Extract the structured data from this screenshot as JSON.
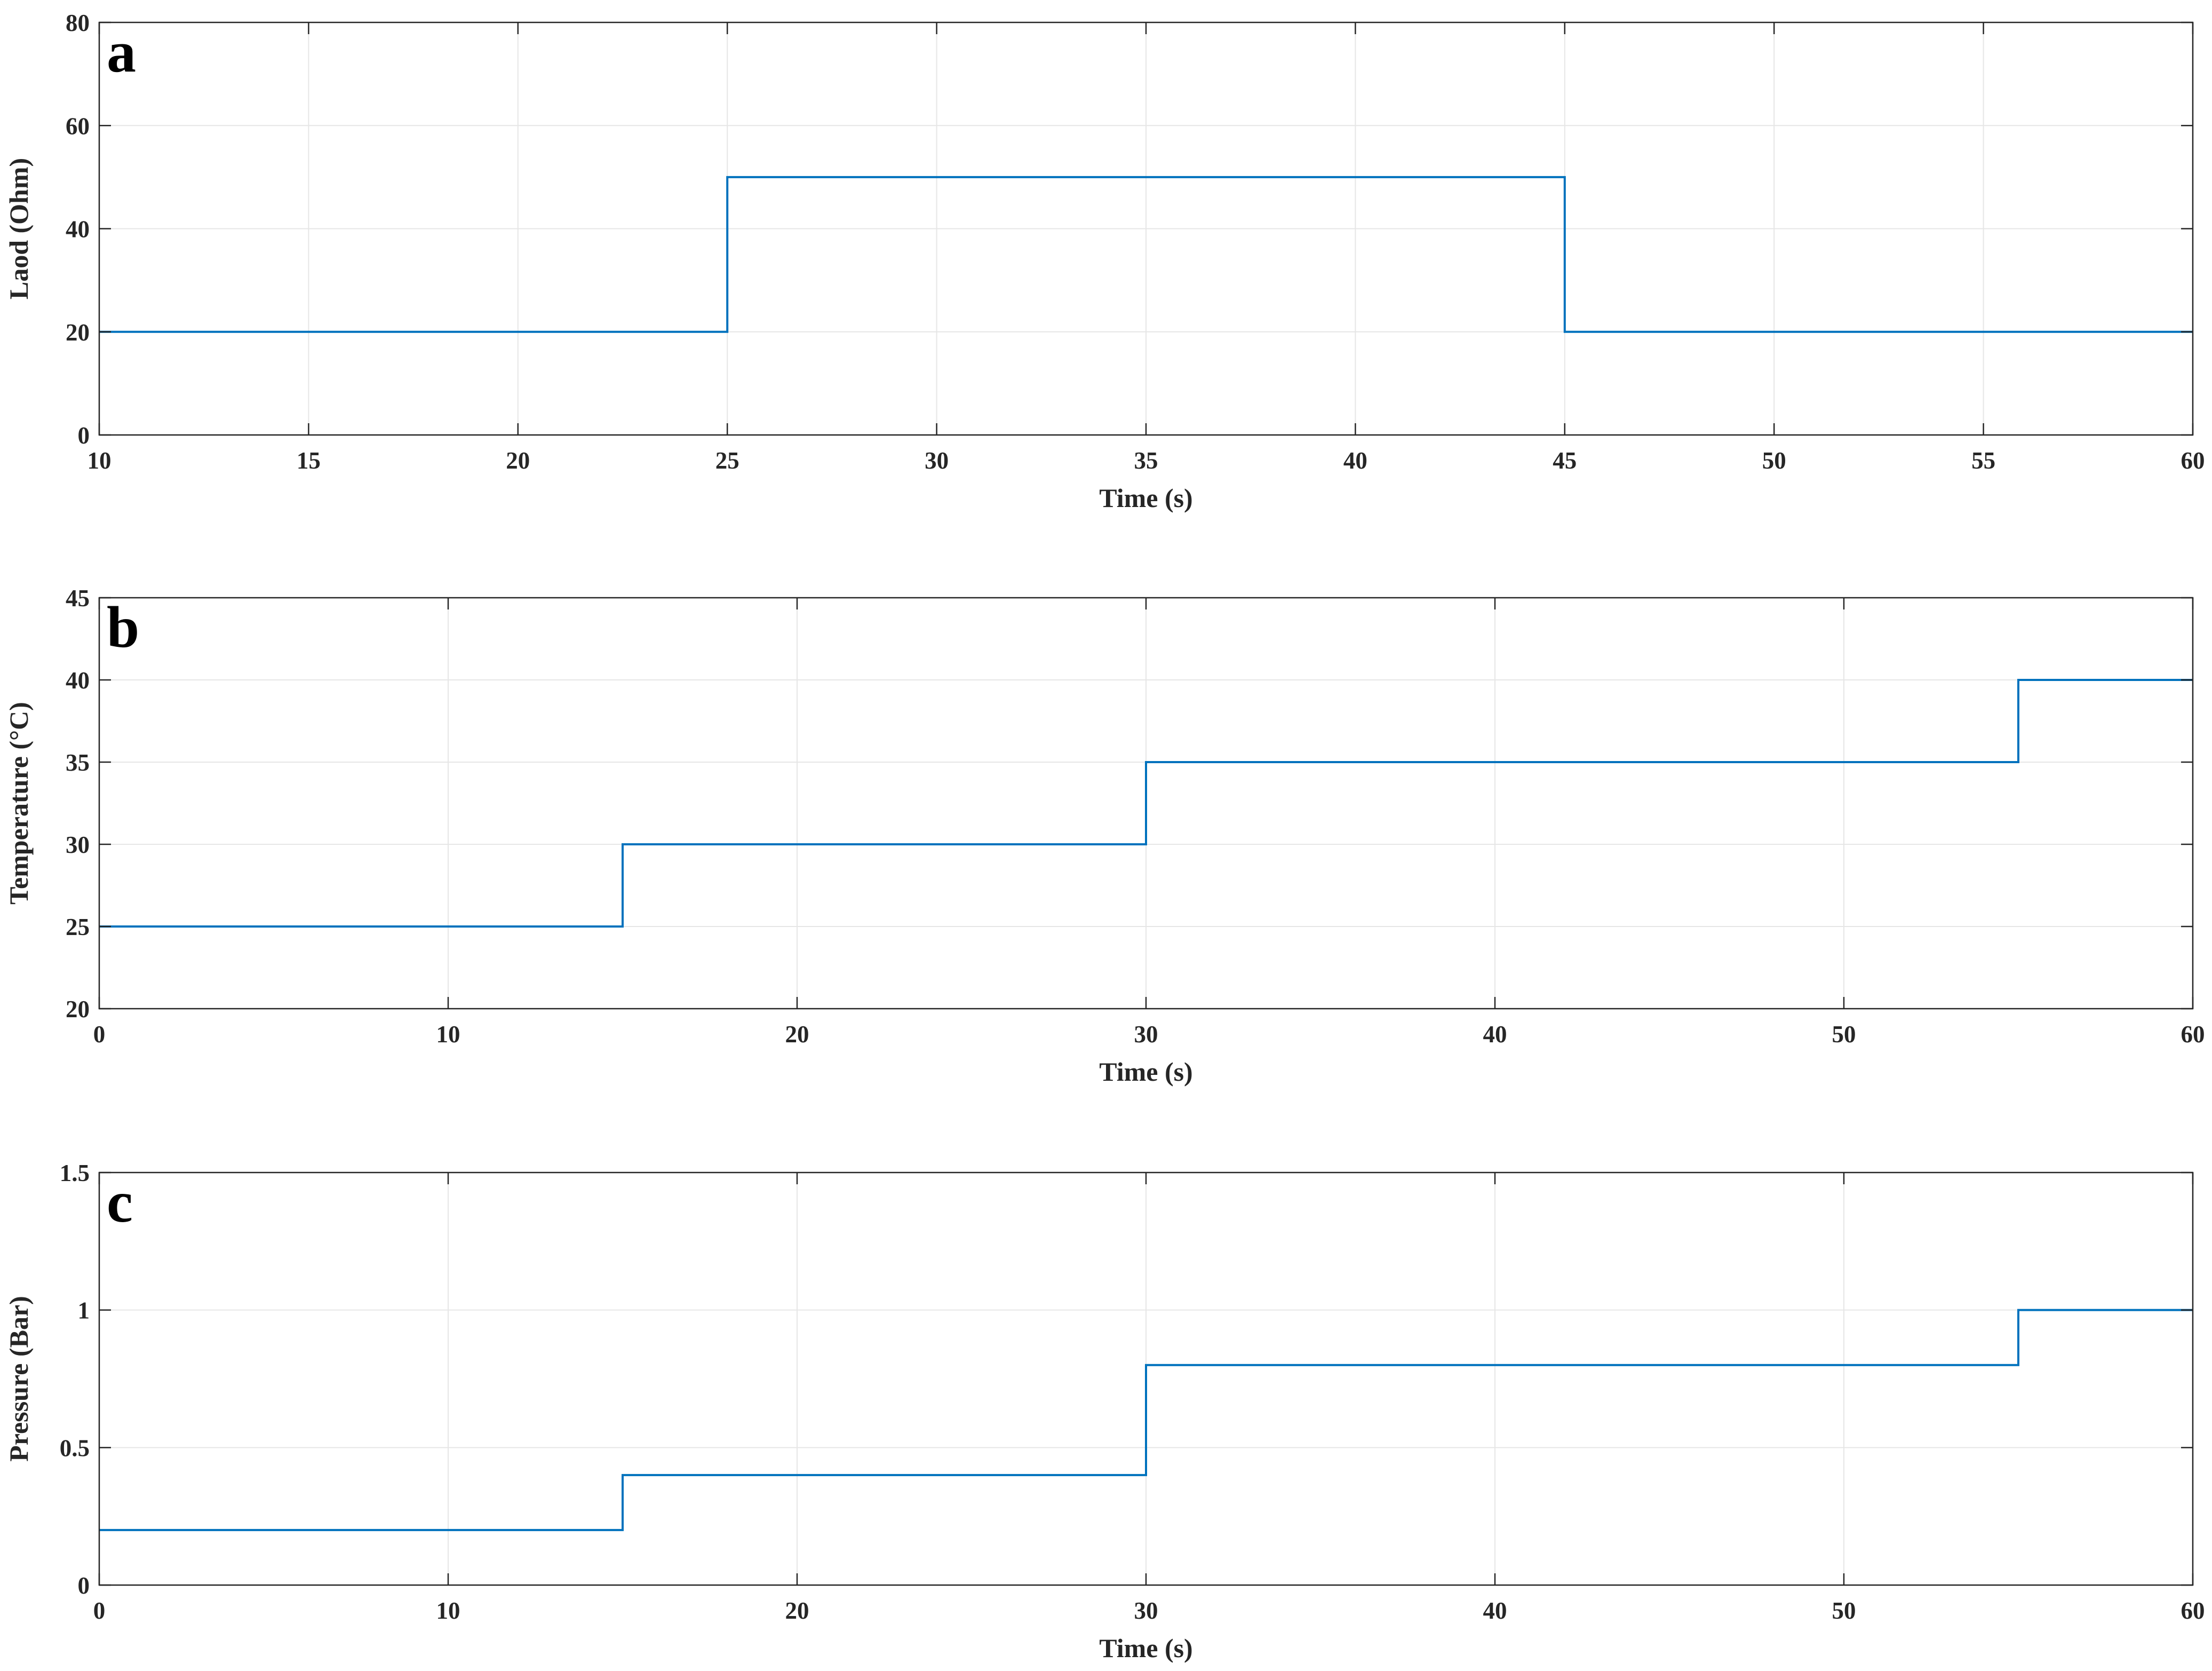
{
  "figure": {
    "line_color": "#0072BD",
    "grid_color": "#e6e6e6",
    "axes_color": "#262626"
  },
  "chart_data": [
    {
      "type": "line",
      "panel_label": "a",
      "xlabel": "Time (s)",
      "ylabel": "Laod (Ohm)",
      "xlim": [
        10,
        60
      ],
      "ylim": [
        0,
        80
      ],
      "xticks": [
        10,
        15,
        20,
        25,
        30,
        35,
        40,
        45,
        50,
        55,
        60
      ],
      "yticks": [
        0,
        20,
        40,
        60,
        80
      ],
      "xtick_labels": [
        "10",
        "15",
        "20",
        "25",
        "30",
        "35",
        "40",
        "45",
        "50",
        "55",
        "60"
      ],
      "ytick_labels": [
        "0",
        "20",
        "40",
        "60",
        "80"
      ],
      "grid": true,
      "series": [
        {
          "step": true,
          "x": [
            10,
            25,
            45,
            60
          ],
          "y": [
            20,
            50,
            20,
            20
          ]
        }
      ]
    },
    {
      "type": "line",
      "panel_label": "b",
      "xlabel": "Time (s)",
      "ylabel": "Temperature (°C)",
      "xlim": [
        0,
        60
      ],
      "ylim": [
        20,
        45
      ],
      "xticks": [
        0,
        10,
        20,
        30,
        40,
        50,
        60
      ],
      "yticks": [
        20,
        25,
        30,
        35,
        40,
        45
      ],
      "xtick_labels": [
        "0",
        "10",
        "20",
        "30",
        "40",
        "50",
        "60"
      ],
      "ytick_labels": [
        "20",
        "25",
        "30",
        "35",
        "40",
        "45"
      ],
      "grid": true,
      "series": [
        {
          "step": true,
          "x": [
            0,
            15,
            30,
            55,
            60
          ],
          "y": [
            25,
            30,
            35,
            40,
            40
          ]
        }
      ]
    },
    {
      "type": "line",
      "panel_label": "c",
      "xlabel": "Time (s)",
      "ylabel": "Pressure (Bar)",
      "xlim": [
        0,
        60
      ],
      "ylim": [
        0,
        1.5
      ],
      "xticks": [
        0,
        10,
        20,
        30,
        40,
        50,
        60
      ],
      "yticks": [
        0,
        0.5,
        1,
        1.5
      ],
      "xtick_labels": [
        "0",
        "10",
        "20",
        "30",
        "40",
        "50",
        "60"
      ],
      "ytick_labels": [
        "0",
        "0.5",
        "1",
        "1.5"
      ],
      "grid": true,
      "series": [
        {
          "step": true,
          "x": [
            0,
            15,
            30,
            55,
            60
          ],
          "y": [
            0.2,
            0.4,
            0.8,
            1.0,
            1.0
          ]
        }
      ]
    }
  ]
}
